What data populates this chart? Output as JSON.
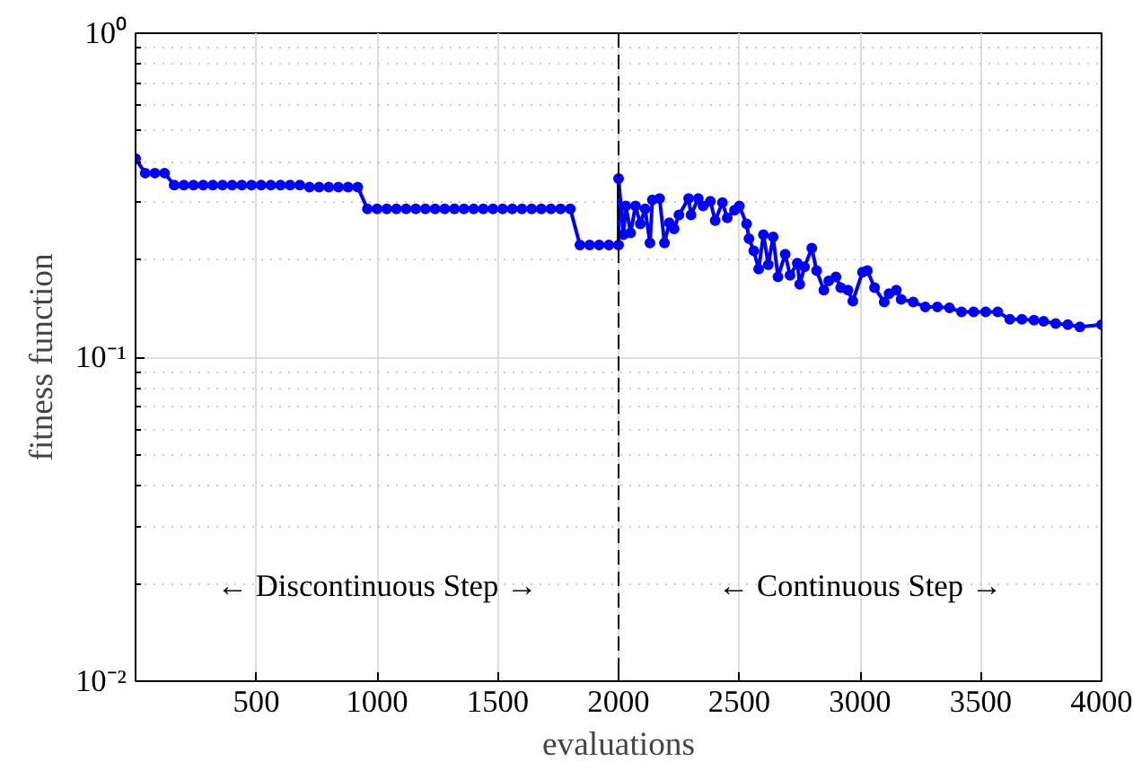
{
  "chart_data": {
    "type": "line",
    "xlabel": "evaluations",
    "ylabel": "fitness function",
    "log": "y",
    "xlim": [
      0,
      4000
    ],
    "ylim": [
      0.01,
      1
    ],
    "xticks": [
      500,
      1000,
      1500,
      2000,
      2500,
      3000,
      3500,
      4000
    ],
    "yticks": [
      {
        "value": 0.01,
        "label": "10⁻²"
      },
      {
        "value": 0.1,
        "label": "10⁻¹"
      },
      {
        "value": 1,
        "label": "10⁰"
      }
    ],
    "grid": true,
    "marker": "circle",
    "line_style": "solid",
    "ref_lines": [
      {
        "axis": "x",
        "value": 2000,
        "label": null,
        "color": "#000000",
        "line_style": "dashed"
      }
    ],
    "annotations": [
      "← Discontinuous Step →",
      "← Continuous Step →"
    ],
    "series": [
      {
        "color": "#0000ff",
        "x": [
          0,
          40,
          80,
          120,
          160,
          200,
          240,
          280,
          320,
          360,
          400,
          440,
          480,
          520,
          560,
          600,
          640,
          680,
          720,
          760,
          800,
          840,
          880,
          920,
          960,
          1000,
          1040,
          1080,
          1120,
          1160,
          1200,
          1240,
          1280,
          1320,
          1360,
          1400,
          1440,
          1480,
          1520,
          1560,
          1600,
          1640,
          1680,
          1720,
          1760,
          1800,
          1840,
          1880,
          1920,
          1960,
          2000,
          2000,
          2020,
          2030,
          2050,
          2070,
          2090,
          2110,
          2130,
          2140,
          2170,
          2190,
          2210,
          2230,
          2250,
          2290,
          2300,
          2330,
          2350,
          2380,
          2400,
          2430,
          2450,
          2480,
          2500,
          2530,
          2540,
          2560,
          2580,
          2600,
          2620,
          2640,
          2660,
          2690,
          2710,
          2740,
          2750,
          2770,
          2800,
          2820,
          2850,
          2870,
          2900,
          2920,
          2950,
          2970,
          3010,
          3030,
          3060,
          3100,
          3120,
          3150,
          3170,
          3220,
          3270,
          3320,
          3370,
          3420,
          3470,
          3520,
          3570,
          3620,
          3670,
          3720,
          3760,
          3810,
          3860,
          3910,
          4000
        ],
        "values": [
          0.41,
          0.37,
          0.37,
          0.37,
          0.34,
          0.34,
          0.34,
          0.34,
          0.34,
          0.34,
          0.34,
          0.34,
          0.34,
          0.34,
          0.34,
          0.34,
          0.34,
          0.34,
          0.335,
          0.335,
          0.335,
          0.335,
          0.335,
          0.335,
          0.287,
          0.287,
          0.287,
          0.287,
          0.287,
          0.287,
          0.287,
          0.287,
          0.287,
          0.287,
          0.287,
          0.287,
          0.287,
          0.287,
          0.287,
          0.287,
          0.287,
          0.287,
          0.287,
          0.287,
          0.287,
          0.287,
          0.222,
          0.222,
          0.222,
          0.222,
          0.222,
          0.356,
          0.239,
          0.293,
          0.242,
          0.293,
          0.258,
          0.287,
          0.225,
          0.306,
          0.309,
          0.225,
          0.26,
          0.249,
          0.275,
          0.309,
          0.275,
          0.309,
          0.293,
          0.303,
          0.264,
          0.3,
          0.269,
          0.284,
          0.293,
          0.258,
          0.232,
          0.213,
          0.187,
          0.239,
          0.193,
          0.235,
          0.177,
          0.208,
          0.179,
          0.195,
          0.168,
          0.19,
          0.217,
          0.185,
          0.161,
          0.172,
          0.177,
          0.164,
          0.161,
          0.149,
          0.183,
          0.185,
          0.164,
          0.148,
          0.157,
          0.161,
          0.151,
          0.148,
          0.143,
          0.143,
          0.142,
          0.138,
          0.138,
          0.138,
          0.138,
          0.131,
          0.131,
          0.13,
          0.129,
          0.127,
          0.126,
          0.124,
          0.126
        ]
      }
    ]
  }
}
